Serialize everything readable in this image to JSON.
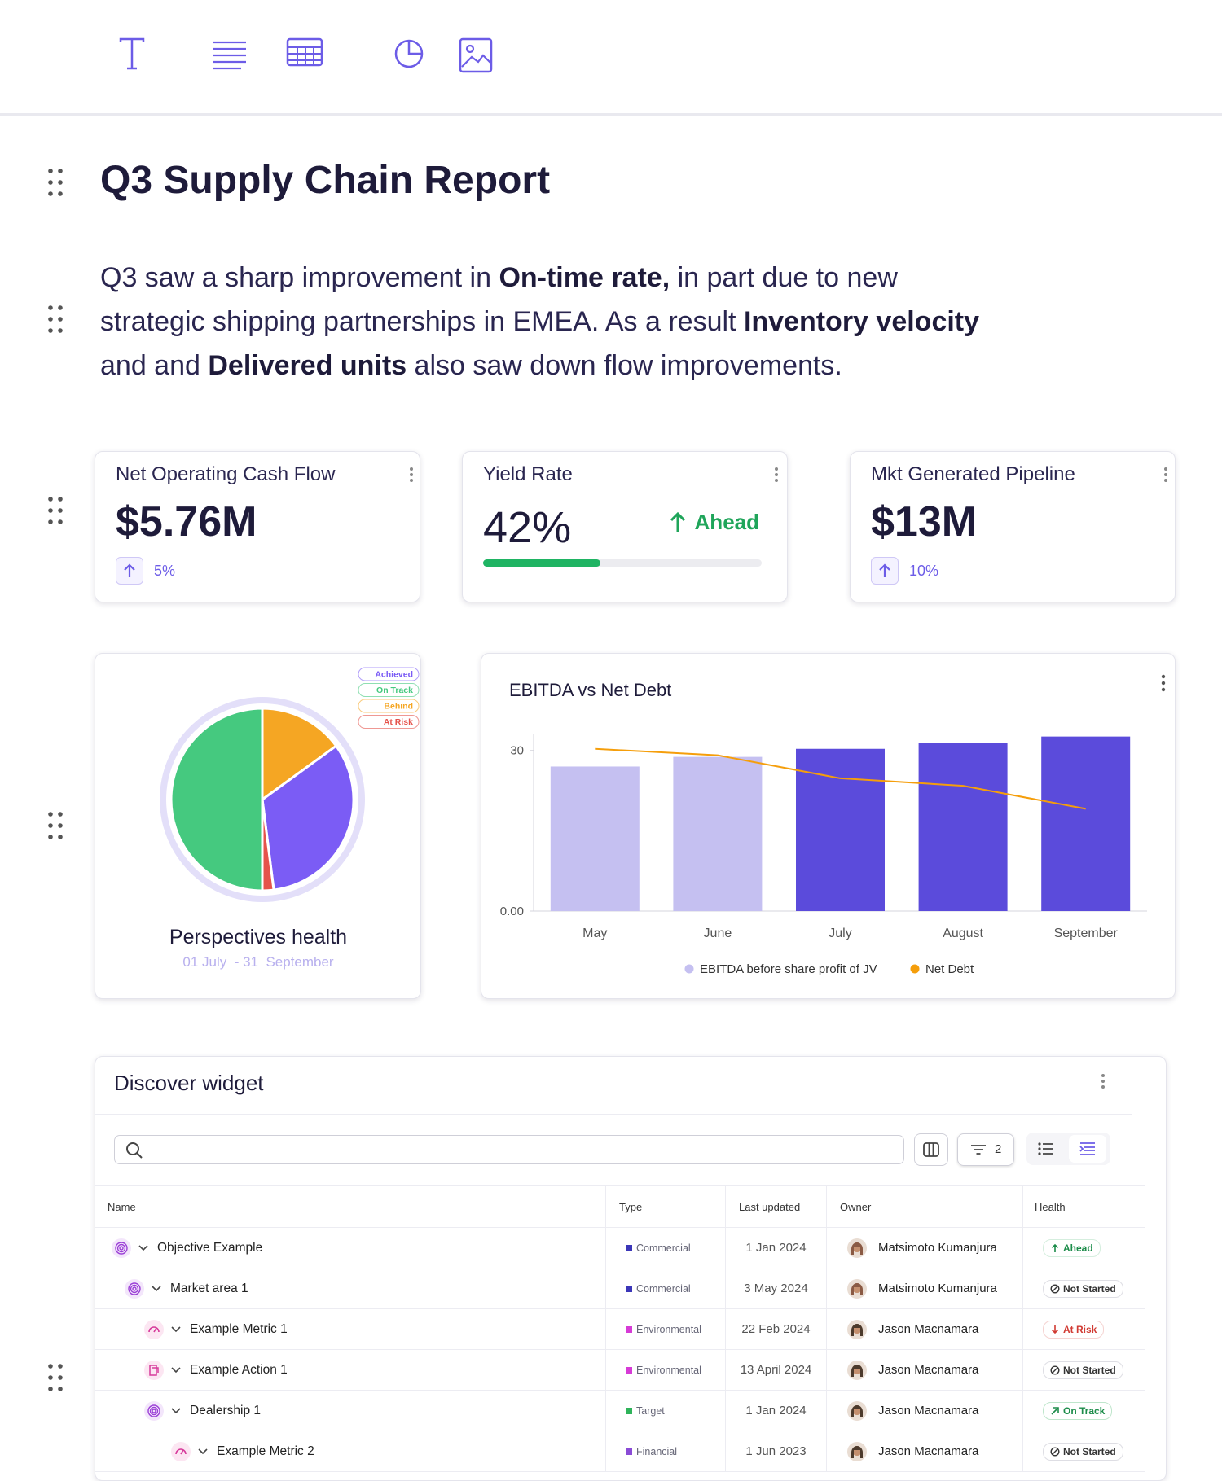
{
  "report": {
    "title": "Q3 Supply Chain Report",
    "summary": [
      [
        "Q3 saw a sharp improvement in ",
        "On-time rate,",
        " in part due to new"
      ],
      [
        "strategic shipping partnerships in EMEA. As a result ",
        "Inventory velocity"
      ],
      [
        "and and ",
        "Delivered units",
        " also saw down flow improvements."
      ]
    ]
  },
  "kpis": [
    {
      "title": "Net Operating Cash Flow",
      "value": "$5.76M",
      "change": "5%"
    },
    {
      "title": "Yield Rate",
      "value": {
        "value": 42,
        "label": "42%"
      },
      "status": "Ahead"
    },
    {
      "title": "Mkt Generated Pipeline",
      "value": "$13M",
      "change": "10%"
    }
  ],
  "chart_data": [
    {
      "type": "pie",
      "title": "Perspectives health",
      "subtitle": "01 July  - 31  September",
      "categories": [
        "Behind",
        "Achieved",
        "At Risk",
        "On Track"
      ],
      "values": [
        15,
        33,
        2,
        50
      ],
      "colors": [
        "#f5a623",
        "#7b5cf5",
        "#e5534b",
        "#45c97f"
      ]
    },
    {
      "type": "bar",
      "title": "EBITDA vs Net Debt",
      "categories": [
        "May",
        "June",
        "July",
        "August",
        "September"
      ],
      "series": [
        {
          "name": "EBITDA before share profit of JV",
          "type": "bar",
          "color": "#c5c0f1",
          "colors": [
            "#c5c0f1",
            "#c5c0f1",
            "#5b4bdb",
            "#5b4bdb",
            "#5b4bdb"
          ],
          "values": [
            27,
            28.8,
            30.3,
            31.4,
            32.6
          ]
        },
        {
          "name": "Net Debt",
          "type": "line",
          "color": "#f59e0b",
          "values": [
            30.3,
            29.1,
            24.8,
            23.4,
            19.1
          ]
        }
      ],
      "ylim": [
        0,
        33
      ],
      "yticks": [
        {
          "value": 0,
          "label": "0.00"
        },
        30
      ]
    }
  ],
  "table": {
    "title": "Discover widget",
    "filter_count": 2,
    "columns": [
      "Name",
      "Type",
      "Last updated",
      "Owner",
      "Health"
    ],
    "rows": [
      [
        "Objective Example",
        "Commercial",
        "1 Jan 2024",
        "Matsimoto Kumanjura",
        "Ahead"
      ],
      [
        "Market area 1",
        "Commercial",
        "3 May 2024",
        "Matsimoto Kumanjura",
        "Not Started"
      ],
      [
        "Example Metric 1",
        "Environmental",
        "22 Feb 2024",
        "Jason Macnamara",
        "At Risk"
      ],
      [
        "Example Action 1",
        "Environmental",
        "13 April 2024",
        "Jason Macnamara",
        "Not Started"
      ],
      [
        "Dealership 1",
        "Target",
        "1 Jan 2024",
        "Jason Macnamara",
        "On Track"
      ],
      [
        "Example Metric 2",
        "Financial",
        "1 Jun 2023",
        "Jason Macnamara",
        "Not Started"
      ]
    ]
  }
}
